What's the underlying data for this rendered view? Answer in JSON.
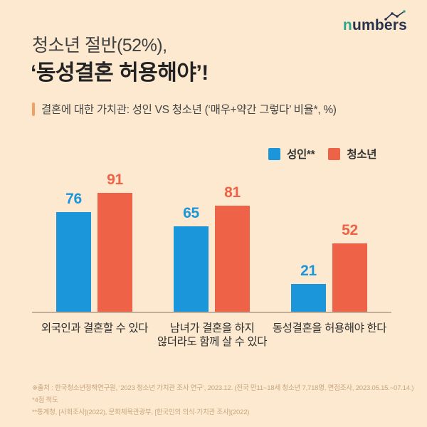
{
  "logo": {
    "first_letter": "n",
    "rest": "umbers"
  },
  "header": {
    "title_line1": "청소년 절반(52%),",
    "title_line2": "‘동성결혼 허용해야’!",
    "subtitle": "결혼에 대한 가치관: 성인 VS 청소년  (‘매우+약간 그렇다’ 비율*, %)"
  },
  "legend": [
    {
      "label": "성인**",
      "color": "#1B96DB"
    },
    {
      "label": "청소년",
      "color": "#EE6347"
    }
  ],
  "chart_data": {
    "type": "bar",
    "title": "결혼에 대한 가치관: 성인 VS 청소년",
    "unit": "%",
    "categories": [
      "외국인과 결혼할 수 있다",
      "남녀가 결혼을 하지 않더라도 함께 살 수 있다",
      "동성결혼을 허용해야 한다"
    ],
    "category_lines": [
      [
        "외국인과 결혼할 수 있다"
      ],
      [
        "남녀가 결혼을 하지",
        "않더라도 함께 살 수 있다"
      ],
      [
        "동성결혼을 허용해야 한다"
      ]
    ],
    "series": [
      {
        "name": "성인**",
        "color": "#1B96DB",
        "values": [
          76,
          65,
          21
        ]
      },
      {
        "name": "청소년",
        "color": "#EE6347",
        "values": [
          91,
          81,
          52
        ]
      }
    ],
    "ylim": [
      0,
      100
    ],
    "grid": false,
    "legend_position": "top-right",
    "value_labels": true
  },
  "footer": {
    "lines": [
      "※출처 : 한국청소년정책연구원, ‘2023 청소년 가치관 조사 연구’, 2023.12. (전국 만11~18세 청소년 7,718명, 면접조사, 2023.05.15.~07.14.)",
      "*4점 척도",
      "**통계청, [사회조사](2022),  문화체육관광부, [한국인의 의식·가치관 조사](2022)"
    ]
  },
  "colors": {
    "background": "#FCE9CF",
    "adult_blue": "#1B96DB",
    "youth_red": "#EE6347",
    "accent_orange": "#F2A066",
    "axis": "#C3AF97",
    "footer_text": "#C9A57D",
    "logo_teal": "#2EA78E",
    "logo_navy": "#27334E"
  }
}
